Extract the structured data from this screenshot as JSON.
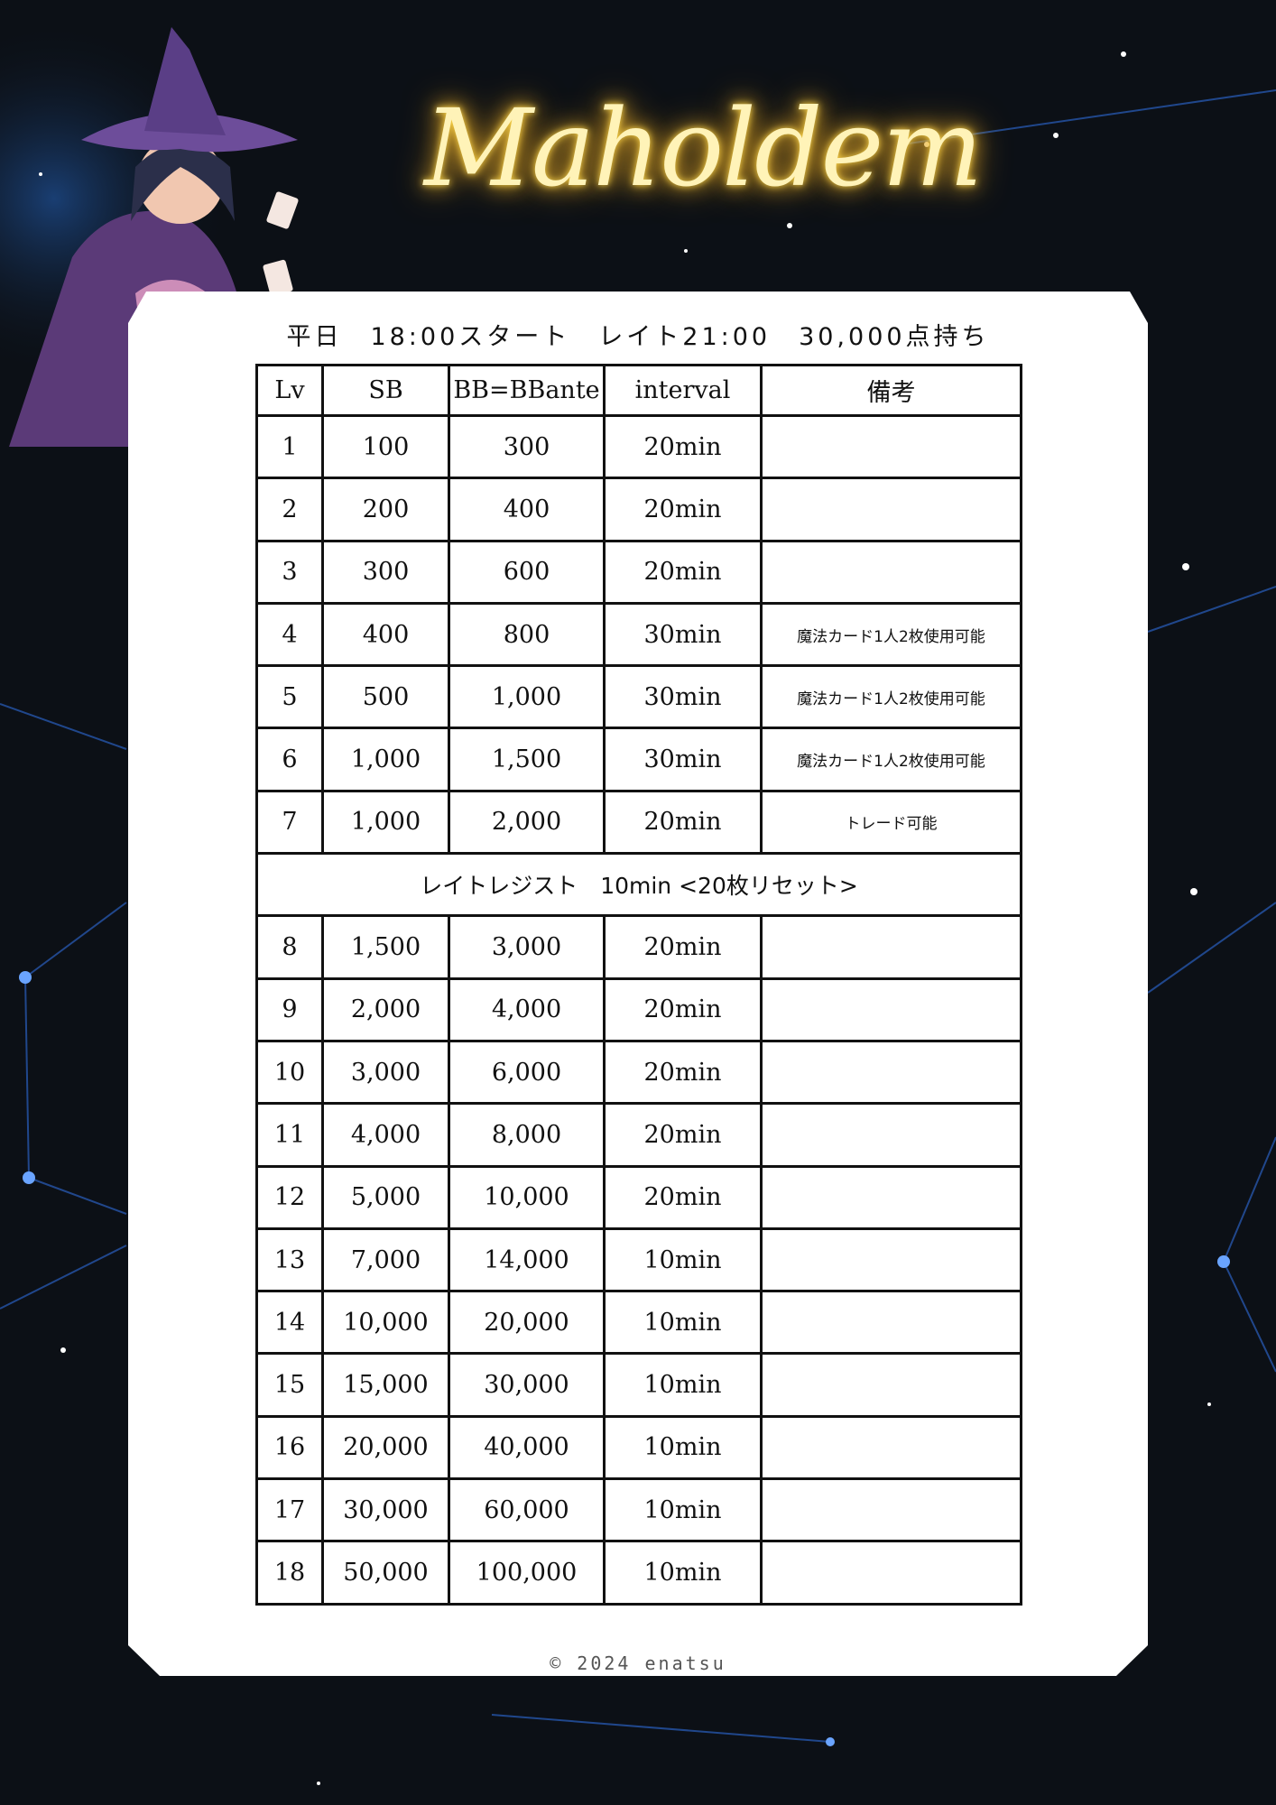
{
  "logo": "Maholdem",
  "subtitle": "平日　18:00スタート　レイト21:00　30,000点持ち",
  "headers": [
    "Lv",
    "SB",
    "BB=BBante",
    "interval",
    "備考"
  ],
  "rows": [
    [
      "1",
      "100",
      "300",
      "20min",
      ""
    ],
    [
      "2",
      "200",
      "400",
      "20min",
      ""
    ],
    [
      "3",
      "300",
      "600",
      "20min",
      ""
    ],
    [
      "4",
      "400",
      "800",
      "30min",
      "魔法カード1人2枚使用可能"
    ],
    [
      "5",
      "500",
      "1,000",
      "30min",
      "魔法カード1人2枚使用可能"
    ],
    [
      "6",
      "1,000",
      "1,500",
      "30min",
      "魔法カード1人2枚使用可能"
    ],
    [
      "7",
      "1,000",
      "2,000",
      "20min",
      "トレード可能"
    ],
    {
      "late": "レイトレジスト　10min <20枚リセット>"
    },
    [
      "8",
      "1,500",
      "3,000",
      "20min",
      ""
    ],
    [
      "9",
      "2,000",
      "4,000",
      "20min",
      ""
    ],
    [
      "10",
      "3,000",
      "6,000",
      "20min",
      ""
    ],
    [
      "11",
      "4,000",
      "8,000",
      "20min",
      ""
    ],
    [
      "12",
      "5,000",
      "10,000",
      "20min",
      ""
    ],
    [
      "13",
      "7,000",
      "14,000",
      "10min",
      ""
    ],
    [
      "14",
      "10,000",
      "20,000",
      "10min",
      ""
    ],
    [
      "15",
      "15,000",
      "30,000",
      "10min",
      ""
    ],
    [
      "16",
      "20,000",
      "40,000",
      "10min",
      ""
    ],
    [
      "17",
      "30,000",
      "60,000",
      "10min",
      ""
    ],
    [
      "18",
      "50,000",
      "100,000",
      "10min",
      ""
    ]
  ],
  "copyright": "© 2024 enatsu",
  "colors": {
    "background": "#0c1016",
    "logo_glow": "#f2b730",
    "panel": "#ffffff",
    "network": "#2f6fd6"
  }
}
